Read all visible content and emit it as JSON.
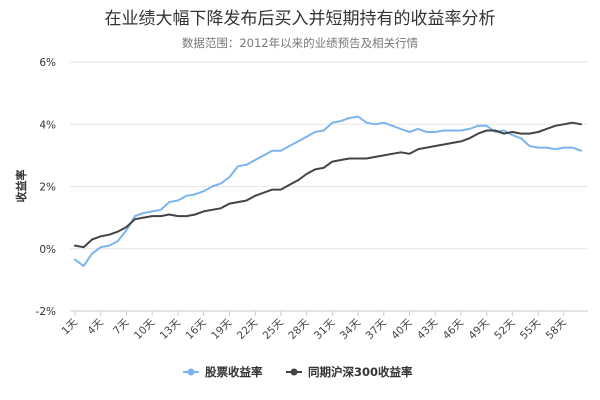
{
  "chart_data": {
    "type": "line",
    "title": "在业绩大幅下降发布后买入并短期持有的收益率分析",
    "subtitle": "数据范围：2012年以来的业绩预告及相关行情",
    "ylabel": "收益率",
    "xlabel": "",
    "ylim": [
      -2,
      6
    ],
    "yticks": [
      -2,
      0,
      2,
      4,
      6
    ],
    "ytick_labels": [
      "-2%",
      "0%",
      "2%",
      "4%",
      "6%"
    ],
    "xtick_labels": [
      "1天",
      "4天",
      "7天",
      "10天",
      "13天",
      "16天",
      "19天",
      "22天",
      "25天",
      "28天",
      "31天",
      "34天",
      "37天",
      "40天",
      "43天",
      "46天",
      "49天",
      "52天",
      "55天",
      "58天"
    ],
    "x": [
      1,
      2,
      3,
      4,
      5,
      6,
      7,
      8,
      9,
      10,
      11,
      12,
      13,
      14,
      15,
      16,
      17,
      18,
      19,
      20,
      21,
      22,
      23,
      24,
      25,
      26,
      27,
      28,
      29,
      30,
      31,
      32,
      33,
      34,
      35,
      36,
      37,
      38,
      39,
      40,
      41,
      42,
      43,
      44,
      45,
      46,
      47,
      48,
      49,
      50,
      51,
      52,
      53,
      54,
      55,
      56,
      57,
      58,
      59,
      60
    ],
    "grid": true,
    "legend_position": "bottom",
    "series": [
      {
        "name": "股票收益率",
        "color": "#7cb5ec",
        "values": [
          -0.35,
          -0.55,
          -0.15,
          0.05,
          0.1,
          0.25,
          0.6,
          1.05,
          1.15,
          1.2,
          1.25,
          1.5,
          1.55,
          1.7,
          1.75,
          1.85,
          2.0,
          2.1,
          2.3,
          2.65,
          2.7,
          2.85,
          3.0,
          3.15,
          3.15,
          3.3,
          3.45,
          3.6,
          3.75,
          3.8,
          4.05,
          4.1,
          4.2,
          4.25,
          4.05,
          4.0,
          4.05,
          3.95,
          3.85,
          3.75,
          3.85,
          3.75,
          3.75,
          3.8,
          3.8,
          3.8,
          3.85,
          3.95,
          3.95,
          3.75,
          3.8,
          3.65,
          3.55,
          3.3,
          3.25,
          3.25,
          3.2,
          3.25,
          3.25,
          3.15
        ]
      },
      {
        "name": "同期沪深300收益率",
        "color": "#434348",
        "values": [
          0.1,
          0.05,
          0.3,
          0.4,
          0.45,
          0.55,
          0.7,
          0.95,
          1.0,
          1.05,
          1.05,
          1.1,
          1.05,
          1.05,
          1.1,
          1.2,
          1.25,
          1.3,
          1.45,
          1.5,
          1.55,
          1.7,
          1.8,
          1.9,
          1.9,
          2.05,
          2.2,
          2.4,
          2.55,
          2.6,
          2.8,
          2.85,
          2.9,
          2.9,
          2.9,
          2.95,
          3.0,
          3.05,
          3.1,
          3.05,
          3.2,
          3.25,
          3.3,
          3.35,
          3.4,
          3.45,
          3.55,
          3.7,
          3.8,
          3.8,
          3.7,
          3.75,
          3.7,
          3.7,
          3.75,
          3.85,
          3.95,
          4.0,
          4.05,
          4.0
        ]
      }
    ]
  }
}
